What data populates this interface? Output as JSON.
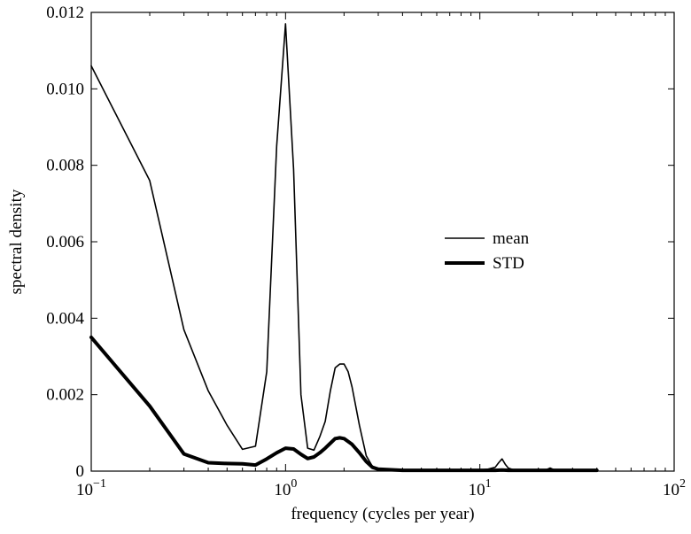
{
  "chart_data": {
    "type": "line",
    "title": "",
    "xlabel": "frequency (cycles per year)",
    "ylabel": "spectral density",
    "xscale": "log",
    "xlim": [
      0.1,
      100
    ],
    "ylim": [
      0,
      0.012
    ],
    "x_ticks": [
      {
        "value": 0.1,
        "base": "10",
        "exp": "−1"
      },
      {
        "value": 1,
        "base": "10",
        "exp": "0"
      },
      {
        "value": 10,
        "base": "10",
        "exp": "1"
      },
      {
        "value": 100,
        "base": "10",
        "exp": "2"
      }
    ],
    "y_ticks": [
      {
        "value": 0,
        "label": "0"
      },
      {
        "value": 0.002,
        "label": "0.002"
      },
      {
        "value": 0.004,
        "label": "0.004"
      },
      {
        "value": 0.006,
        "label": "0.006"
      },
      {
        "value": 0.008,
        "label": "0.008"
      },
      {
        "value": 0.01,
        "label": "0.010"
      },
      {
        "value": 0.012,
        "label": "0.012"
      }
    ],
    "grid": false,
    "legend_position": "center-right",
    "series": [
      {
        "name": "mean",
        "line_width": "thin",
        "color": "#000000",
        "x": [
          0.1,
          0.2,
          0.3,
          0.4,
          0.5,
          0.6,
          0.7,
          0.8,
          0.9,
          1.0,
          1.1,
          1.2,
          1.3,
          1.4,
          1.5,
          1.6,
          1.7,
          1.8,
          1.9,
          2.0,
          2.1,
          2.2,
          2.4,
          2.6,
          2.8,
          3.0,
          4,
          5,
          6,
          7,
          8,
          9,
          10,
          11,
          12,
          12.5,
          13,
          13.5,
          14,
          15,
          20,
          22,
          23,
          24,
          26,
          30,
          35,
          40
        ],
        "y": [
          0.0106,
          0.0076,
          0.0037,
          0.0021,
          0.0012,
          0.00057,
          0.00065,
          0.0026,
          0.0085,
          0.0117,
          0.0079,
          0.002,
          0.0006,
          0.00055,
          0.0009,
          0.0013,
          0.0021,
          0.0027,
          0.0028,
          0.0028,
          0.0026,
          0.0022,
          0.0012,
          0.0004,
          0.00012,
          6e-05,
          3e-05,
          2e-05,
          2e-05,
          2e-05,
          2e-05,
          2e-05,
          3e-05,
          5e-05,
          0.0001,
          0.00022,
          0.00032,
          0.00018,
          8e-05,
          3e-05,
          3e-05,
          4e-05,
          8e-05,
          4e-05,
          3e-05,
          3e-05,
          3e-05,
          3e-05
        ]
      },
      {
        "name": "STD",
        "line_width": "thick",
        "color": "#000000",
        "x": [
          0.1,
          0.2,
          0.3,
          0.4,
          0.5,
          0.6,
          0.7,
          0.8,
          0.9,
          1.0,
          1.1,
          1.2,
          1.3,
          1.4,
          1.5,
          1.6,
          1.7,
          1.8,
          1.9,
          2.0,
          2.2,
          2.4,
          2.6,
          2.8,
          3.0,
          4,
          5,
          6,
          7,
          8,
          9,
          10,
          12,
          13,
          14,
          20,
          24,
          30,
          40
        ],
        "y": [
          0.0035,
          0.0017,
          0.00045,
          0.00022,
          0.0002,
          0.00019,
          0.00016,
          0.00032,
          0.00048,
          0.0006,
          0.00058,
          0.00044,
          0.00033,
          0.00037,
          0.00048,
          0.0006,
          0.00073,
          0.00085,
          0.00087,
          0.00085,
          0.0007,
          0.00048,
          0.00025,
          0.0001,
          5e-05,
          2e-05,
          2e-05,
          2e-05,
          2e-05,
          2e-05,
          2e-05,
          2e-05,
          2e-05,
          3e-05,
          2e-05,
          2e-05,
          2e-05,
          2e-05,
          2e-05
        ]
      }
    ]
  }
}
